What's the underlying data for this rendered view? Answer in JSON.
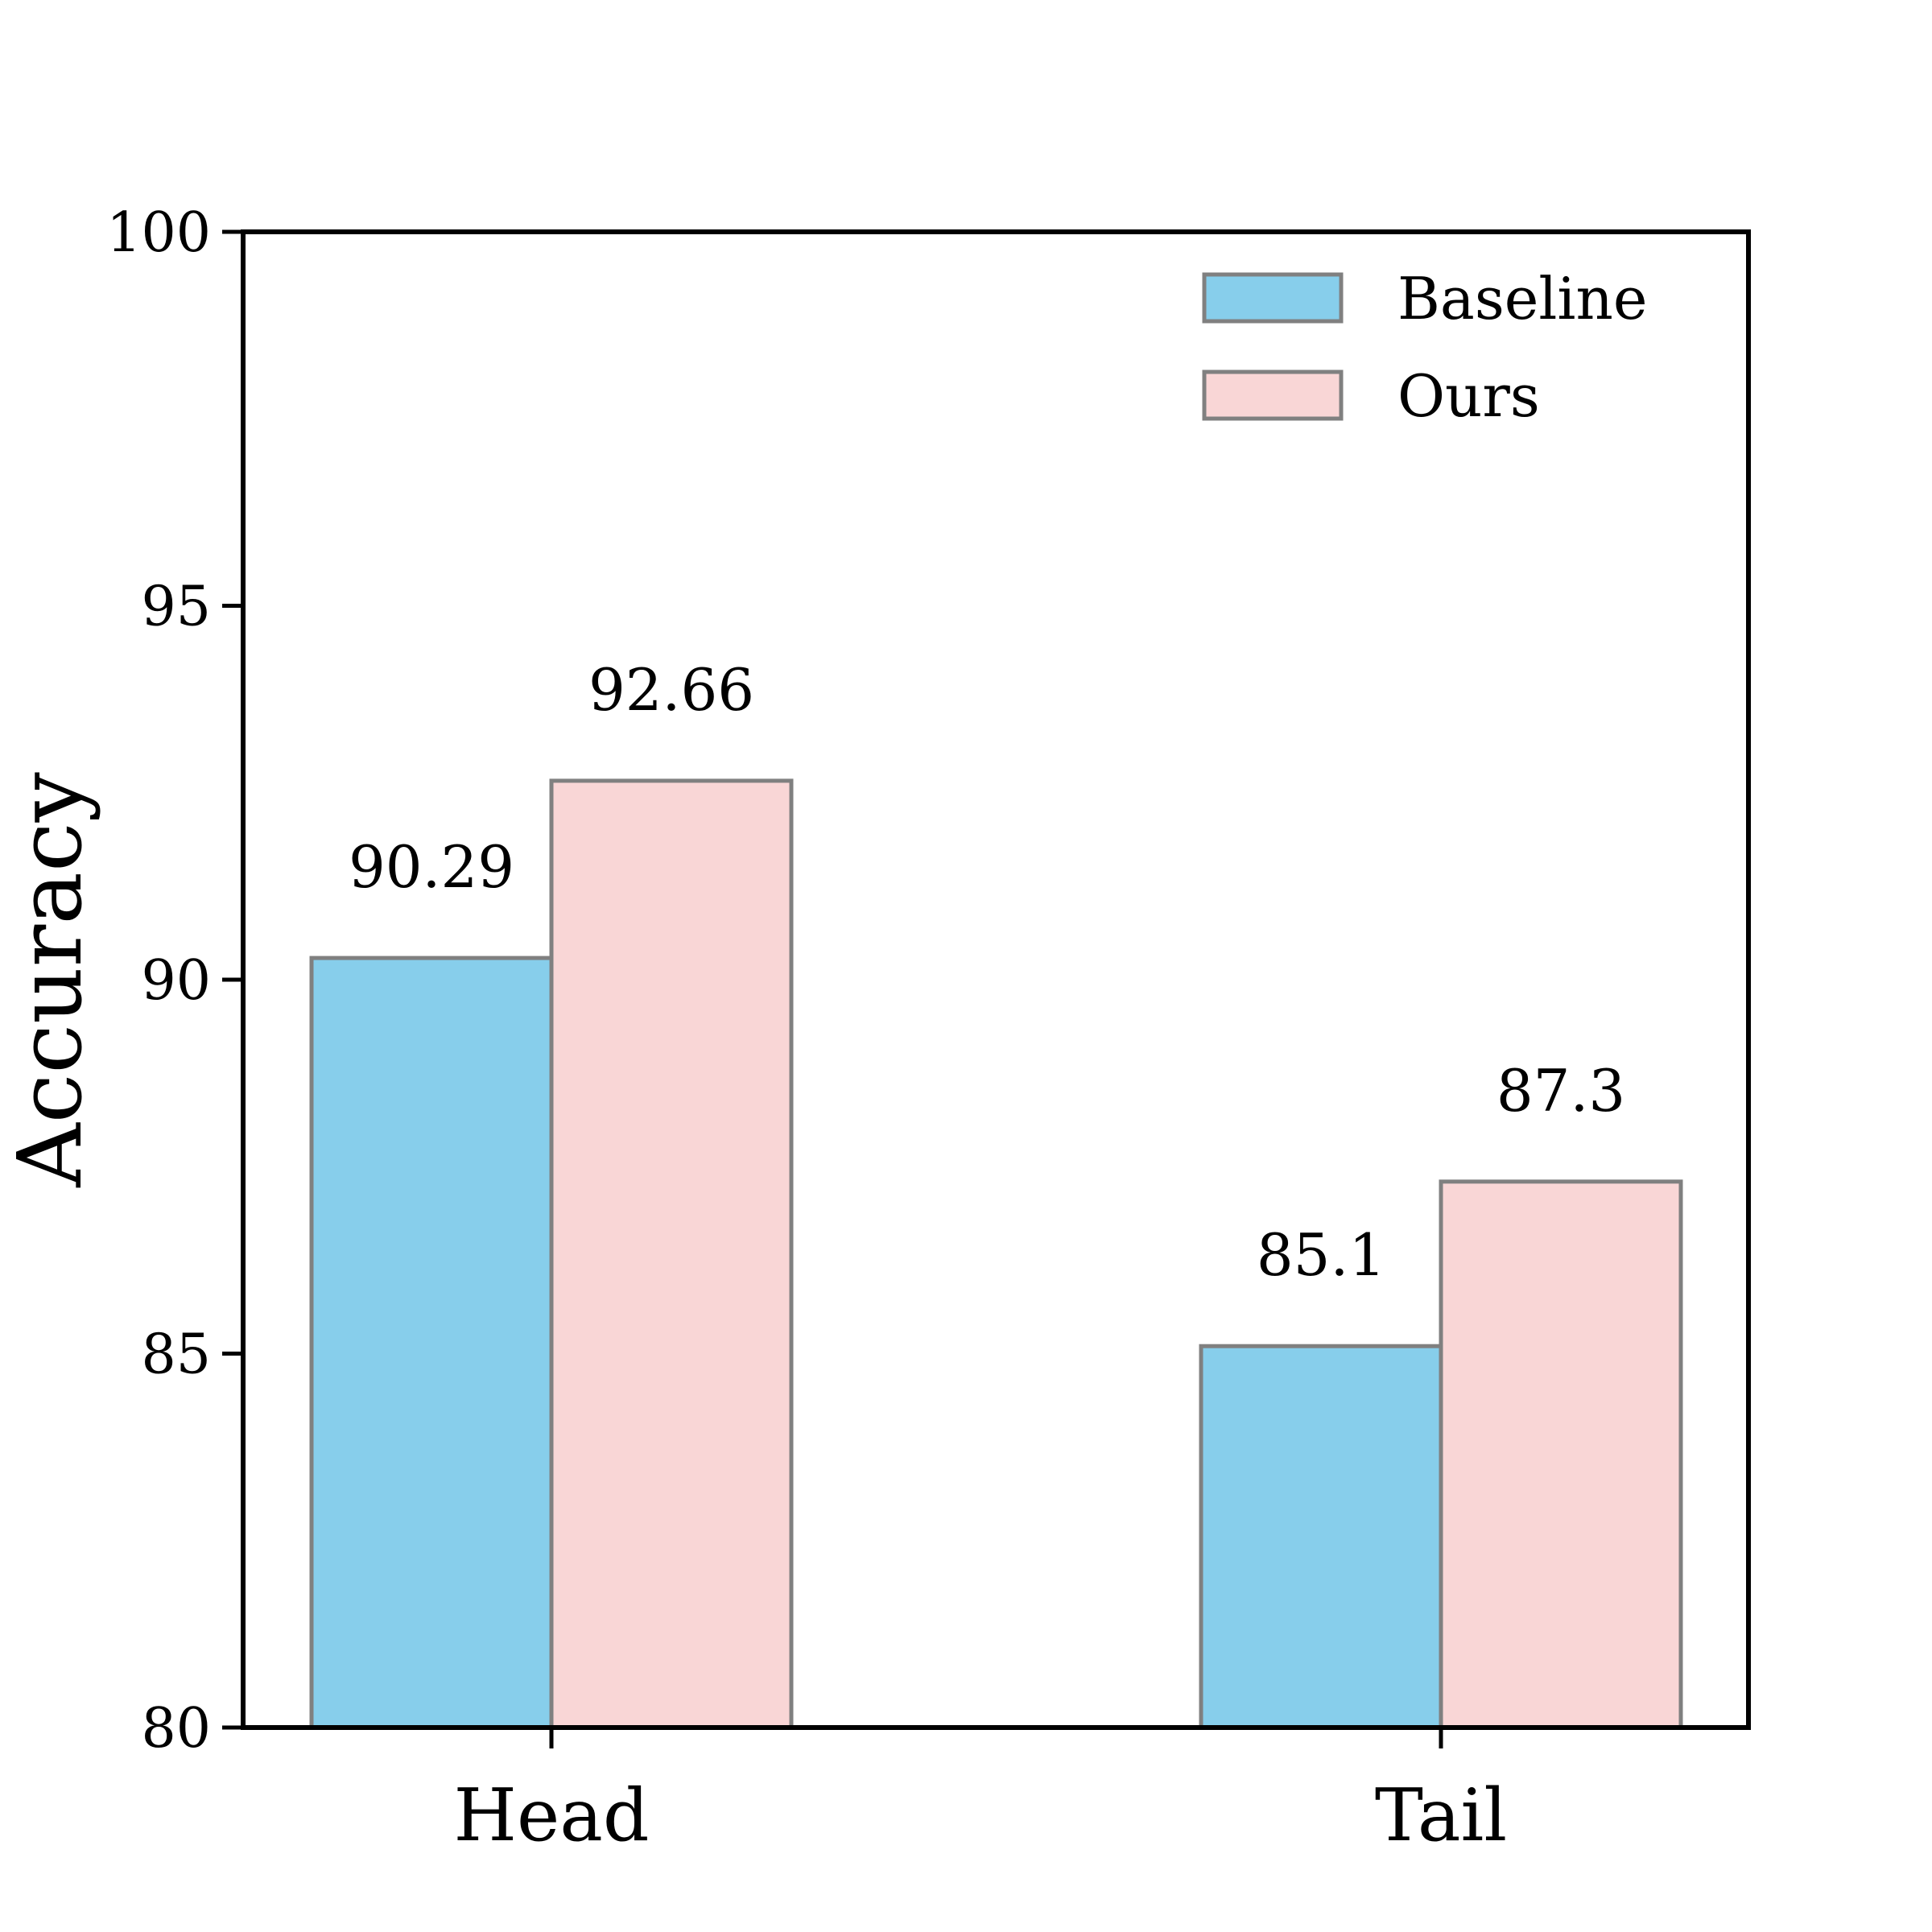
{
  "chart_data": {
    "type": "bar",
    "categories": [
      "Head",
      "Tail"
    ],
    "series": [
      {
        "name": "Baseline",
        "values": [
          90.29,
          85.1
        ],
        "labels": [
          "90.29",
          "85.1"
        ],
        "color": "#87CEEB"
      },
      {
        "name": "Ours",
        "values": [
          92.66,
          87.3
        ],
        "labels": [
          "92.66",
          "87.3"
        ],
        "color": "#F9D6D6"
      }
    ],
    "title": "",
    "xlabel": "",
    "ylabel": "Accuracy",
    "ylim": [
      80,
      100
    ],
    "yticks": [
      80,
      85,
      90,
      95,
      100
    ],
    "ytick_labels": [
      "80",
      "85",
      "90",
      "95",
      "100"
    ],
    "grid": false,
    "legend_position": "top-right",
    "bar_edge_color": "#808080",
    "axis_color": "#000000"
  }
}
